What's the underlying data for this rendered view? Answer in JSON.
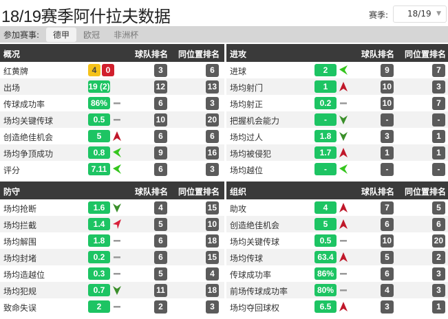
{
  "page_title": "18/19赛季阿什拉夫数据",
  "season": {
    "label": "赛季:",
    "selected": "18/19",
    "caret_icon": "chevron-down-icon"
  },
  "competitions": {
    "label": "参加赛事:",
    "items": [
      {
        "label": "德甲",
        "active": true
      },
      {
        "label": "欧冠",
        "active": false
      },
      {
        "label": "非洲杯",
        "active": false
      }
    ]
  },
  "colors": {
    "value_pill": "#1dc463",
    "rank_badge": "#5b5b5b",
    "header": "#3a3a3a",
    "trend_up": "#c0182a",
    "trend_down": "#3a8f2a",
    "trend_flat": "#999999"
  },
  "panels": [
    {
      "title": "概况",
      "col_team": "球队排名",
      "col_pos": "同位置排名",
      "rows": [
        {
          "label": "红黄牌",
          "cards": {
            "yellow": "4",
            "red": "0"
          },
          "team": "3",
          "pos": "6"
        },
        {
          "label": "出场",
          "value": "19 (2)",
          "trend": "",
          "team": "12",
          "pos": "13"
        },
        {
          "label": "传球成功率",
          "value": "86%",
          "trend": "flat",
          "team": "6",
          "pos": "3"
        },
        {
          "label": "场均关键传球",
          "value": "0.5",
          "trend": "flat",
          "team": "10",
          "pos": "20"
        },
        {
          "label": "创造绝佳机会",
          "value": "5",
          "trend": "up",
          "team": "6",
          "pos": "6"
        },
        {
          "label": "场均争顶成功",
          "value": "0.8",
          "trend": "slight",
          "team": "9",
          "pos": "16"
        },
        {
          "label": "评分",
          "value": "7.11",
          "trend": "slight",
          "team": "6",
          "pos": "3"
        }
      ]
    },
    {
      "title": "进攻",
      "col_team": "球队排名",
      "col_pos": "同位置排名",
      "rows": [
        {
          "label": "进球",
          "value": "2",
          "trend": "slight",
          "team": "9",
          "pos": "7"
        },
        {
          "label": "场均射门",
          "value": "1",
          "trend": "up",
          "team": "10",
          "pos": "3"
        },
        {
          "label": "场均射正",
          "value": "0.2",
          "trend": "flat",
          "team": "10",
          "pos": "7"
        },
        {
          "label": "把握机会能力",
          "value": "-",
          "trend": "down",
          "team": "-",
          "pos": "-"
        },
        {
          "label": "场均过人",
          "value": "1.8",
          "trend": "down",
          "team": "3",
          "pos": "1"
        },
        {
          "label": "场均被侵犯",
          "value": "1.7",
          "trend": "up",
          "team": "1",
          "pos": "1"
        },
        {
          "label": "场均越位",
          "value": "-",
          "trend": "slight",
          "team": "-",
          "pos": "-"
        }
      ]
    },
    {
      "title": "防守",
      "col_team": "球队排名",
      "col_pos": "同位置排名",
      "rows": [
        {
          "label": "场均抢断",
          "value": "1.6",
          "trend": "down",
          "team": "4",
          "pos": "15"
        },
        {
          "label": "场均拦截",
          "value": "1.4",
          "trend": "slight-up",
          "team": "5",
          "pos": "10"
        },
        {
          "label": "场均解围",
          "value": "1.8",
          "trend": "flat",
          "team": "6",
          "pos": "18"
        },
        {
          "label": "场均封堵",
          "value": "0.2",
          "trend": "flat",
          "team": "6",
          "pos": "15"
        },
        {
          "label": "场均造越位",
          "value": "0.3",
          "trend": "flat",
          "team": "5",
          "pos": "4"
        },
        {
          "label": "场均犯规",
          "value": "0.7",
          "trend": "down",
          "team": "11",
          "pos": "18"
        },
        {
          "label": "致命失误",
          "value": "2",
          "trend": "flat",
          "team": "2",
          "pos": "3"
        }
      ]
    },
    {
      "title": "组织",
      "col_team": "球队排名",
      "col_pos": "同位置排名",
      "rows": [
        {
          "label": "助攻",
          "value": "4",
          "trend": "up",
          "team": "7",
          "pos": "5"
        },
        {
          "label": "创造绝佳机会",
          "value": "5",
          "trend": "up",
          "team": "6",
          "pos": "6"
        },
        {
          "label": "场均关键传球",
          "value": "0.5",
          "trend": "flat",
          "team": "10",
          "pos": "20"
        },
        {
          "label": "场均传球",
          "value": "63.4",
          "trend": "up",
          "team": "5",
          "pos": "2"
        },
        {
          "label": "传球成功率",
          "value": "86%",
          "trend": "flat",
          "team": "6",
          "pos": "3"
        },
        {
          "label": "前场传球成功率",
          "value": "80%",
          "trend": "flat",
          "team": "4",
          "pos": "3"
        },
        {
          "label": "场均夺回球权",
          "value": "6.5",
          "trend": "up",
          "team": "3",
          "pos": "1"
        }
      ]
    }
  ]
}
